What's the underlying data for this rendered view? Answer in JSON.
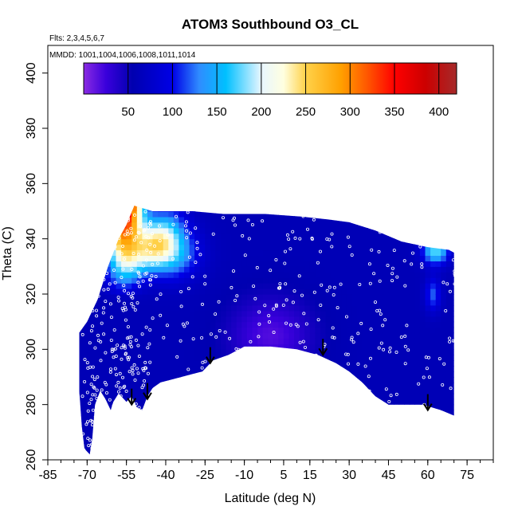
{
  "chart_data": {
    "type": "heatmap",
    "title": "ATOM3 Southbound O3_CL",
    "subtitle_flights": "Flts: 2,3,4,5,6,7",
    "subtitle_dates": "MMDD: 1001,1004,1006,1008,1011,1014",
    "xlabel": "Latitude (deg N)",
    "ylabel": "Theta (C)",
    "xlim": [
      -85,
      85
    ],
    "ylim": [
      260,
      410
    ],
    "x_ticks": [
      "-85",
      "-70",
      "-55",
      "-40",
      "-25",
      "-10",
      "5",
      "15",
      "30",
      "45",
      "60",
      "75"
    ],
    "x_tick_values": [
      -85,
      -70,
      -55,
      -40,
      -25,
      -10,
      5,
      15,
      30,
      45,
      60,
      75
    ],
    "x_minor_step": 5,
    "y_ticks": [
      "260",
      "280",
      "300",
      "320",
      "340",
      "360",
      "380",
      "400"
    ],
    "y_tick_values": [
      260,
      280,
      300,
      320,
      340,
      360,
      380,
      400
    ],
    "colorbar": {
      "range": [
        0,
        420
      ],
      "ticks": [
        "50",
        "100",
        "150",
        "200",
        "250",
        "300",
        "350",
        "400"
      ],
      "tick_values": [
        50,
        100,
        150,
        200,
        250,
        300,
        350,
        400
      ],
      "stops": [
        {
          "v": 0,
          "c": "#8a2be2"
        },
        {
          "v": 25,
          "c": "#3a00dc"
        },
        {
          "v": 55,
          "c": "#0000b0"
        },
        {
          "v": 100,
          "c": "#0000e6"
        },
        {
          "v": 130,
          "c": "#2f8cff"
        },
        {
          "v": 160,
          "c": "#00c0ff"
        },
        {
          "v": 200,
          "c": "#e8f6ff"
        },
        {
          "v": 225,
          "c": "#ffffe0"
        },
        {
          "v": 250,
          "c": "#ffd24a"
        },
        {
          "v": 290,
          "c": "#ffa000"
        },
        {
          "v": 320,
          "c": "#ff5500"
        },
        {
          "v": 350,
          "c": "#ff0000"
        },
        {
          "v": 385,
          "c": "#cc0000"
        },
        {
          "v": 420,
          "c": "#a52a2a"
        }
      ]
    },
    "field": {
      "lower_boundary": [
        [
          -73,
          285
        ],
        [
          -72,
          272
        ],
        [
          -71,
          264
        ],
        [
          -69,
          262
        ],
        [
          -68,
          268
        ],
        [
          -67,
          280
        ],
        [
          -65,
          285
        ],
        [
          -63,
          282
        ],
        [
          -61,
          278
        ],
        [
          -60,
          281
        ],
        [
          -58,
          284
        ],
        [
          -56,
          282
        ],
        [
          -55,
          281
        ],
        [
          -53,
          283
        ],
        [
          -51,
          279
        ],
        [
          -49,
          278
        ],
        [
          -47,
          283
        ],
        [
          -45,
          286
        ],
        [
          -42,
          288
        ],
        [
          -38,
          289
        ],
        [
          -34,
          290
        ],
        [
          -30,
          291
        ],
        [
          -26,
          292
        ],
        [
          -22,
          296
        ],
        [
          -16,
          298
        ],
        [
          -10,
          301
        ],
        [
          0,
          301
        ],
        [
          10,
          300
        ],
        [
          18,
          298
        ],
        [
          25,
          295
        ],
        [
          30,
          292
        ],
        [
          35,
          288
        ],
        [
          40,
          283
        ],
        [
          45,
          280
        ],
        [
          50,
          280
        ],
        [
          58,
          280
        ],
        [
          65,
          278
        ],
        [
          70,
          276
        ]
      ],
      "upper_boundary": [
        [
          -73,
          306
        ],
        [
          -70,
          310
        ],
        [
          -66,
          318
        ],
        [
          -62,
          330
        ],
        [
          -58,
          340
        ],
        [
          -55,
          345
        ],
        [
          -52,
          352
        ],
        [
          -45,
          350
        ],
        [
          -30,
          350
        ],
        [
          -18,
          349
        ],
        [
          -2,
          349
        ],
        [
          12,
          348
        ],
        [
          22,
          347
        ],
        [
          30,
          346
        ],
        [
          40,
          343
        ],
        [
          50,
          339
        ],
        [
          60,
          337
        ],
        [
          68,
          336
        ],
        [
          70,
          335
        ]
      ],
      "description_values": {
        "background_troposphere": 60,
        "stratospheric_intrusion_core": 300,
        "southern_midlatitude_top": 360,
        "tropical_low": 25,
        "high_latitude_north_top": 180
      }
    },
    "arrows_latitude": [
      -53,
      -47,
      -23,
      20,
      60
    ],
    "arrows_theta": [
      280,
      282,
      295,
      298,
      278
    ]
  }
}
